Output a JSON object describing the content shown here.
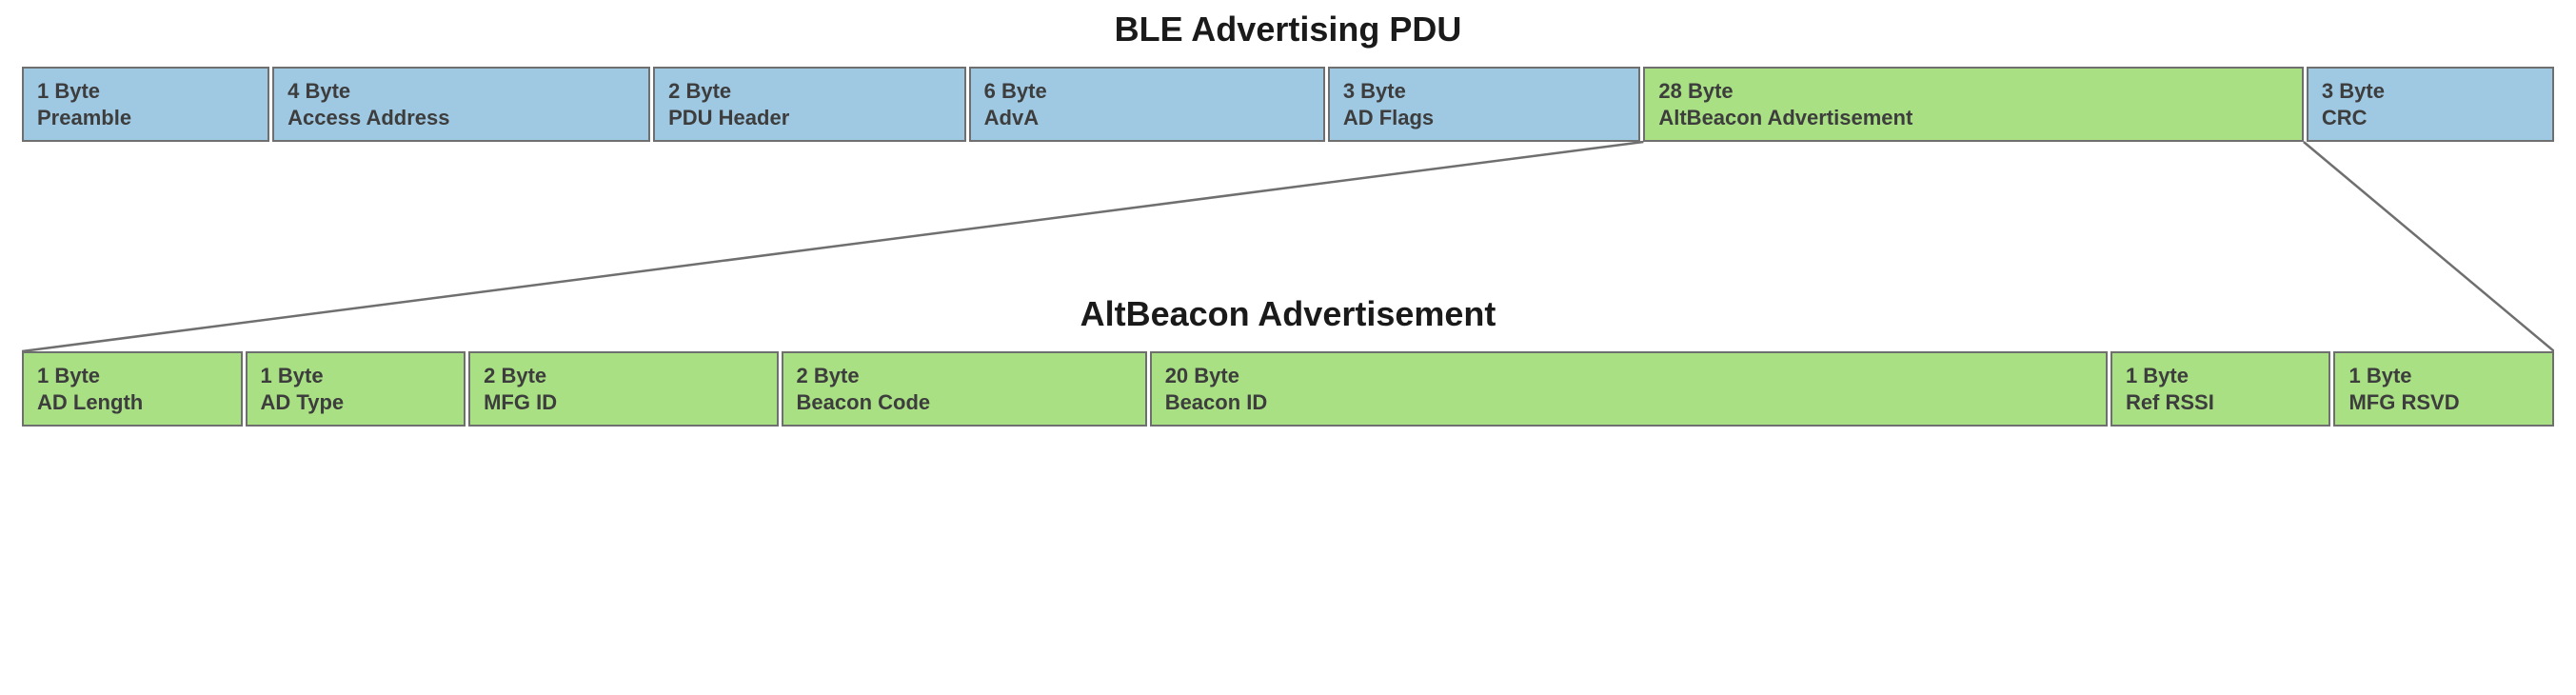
{
  "colors": {
    "blue_fill": "#9fc9e3",
    "green_fill": "#a8e083",
    "border": "#6f6f6f",
    "text": "#3d3d3d",
    "title": "#1a1a1a",
    "connector": "#6f6f6f",
    "background": "#ffffff"
  },
  "top": {
    "title": "BLE Advertising PDU",
    "fields": [
      {
        "line1": "1 Byte",
        "line2": "Preamble",
        "flex": 1.0,
        "color": "blue"
      },
      {
        "line1": "4 Byte",
        "line2": "Access Address",
        "flex": 1.6,
        "color": "blue"
      },
      {
        "line1": "2 Byte",
        "line2": "PDU Header",
        "flex": 1.3,
        "color": "blue"
      },
      {
        "line1": "6 Byte",
        "line2": "AdvA",
        "flex": 1.5,
        "color": "blue"
      },
      {
        "line1": "3 Byte",
        "line2": "AD Flags",
        "flex": 1.3,
        "color": "blue"
      },
      {
        "line1": "28 Byte",
        "line2": "AltBeacon Advertisement",
        "flex": 2.9,
        "color": "green"
      },
      {
        "line1": "3 Byte",
        "line2": "CRC",
        "flex": 1.0,
        "color": "blue"
      }
    ]
  },
  "bottom": {
    "title": "AltBeacon Advertisement",
    "fields": [
      {
        "line1": "1 Byte",
        "line2": "AD Length",
        "flex": 0.85,
        "color": "green"
      },
      {
        "line1": "1 Byte",
        "line2": "AD Type",
        "flex": 0.85,
        "color": "green"
      },
      {
        "line1": "2 Byte",
        "line2": "MFG ID",
        "flex": 1.25,
        "color": "green"
      },
      {
        "line1": "2 Byte",
        "line2": "Beacon Code",
        "flex": 1.5,
        "color": "green"
      },
      {
        "line1": "20 Byte",
        "line2": "Beacon ID",
        "flex": 4.15,
        "color": "green"
      },
      {
        "line1": "1 Byte",
        "line2": "Ref RSSI",
        "flex": 0.85,
        "color": "green"
      },
      {
        "line1": "1 Byte",
        "line2": "MFG RSVD",
        "flex": 0.85,
        "color": "green"
      }
    ]
  },
  "connector": {
    "stroke_width": 2.5
  }
}
